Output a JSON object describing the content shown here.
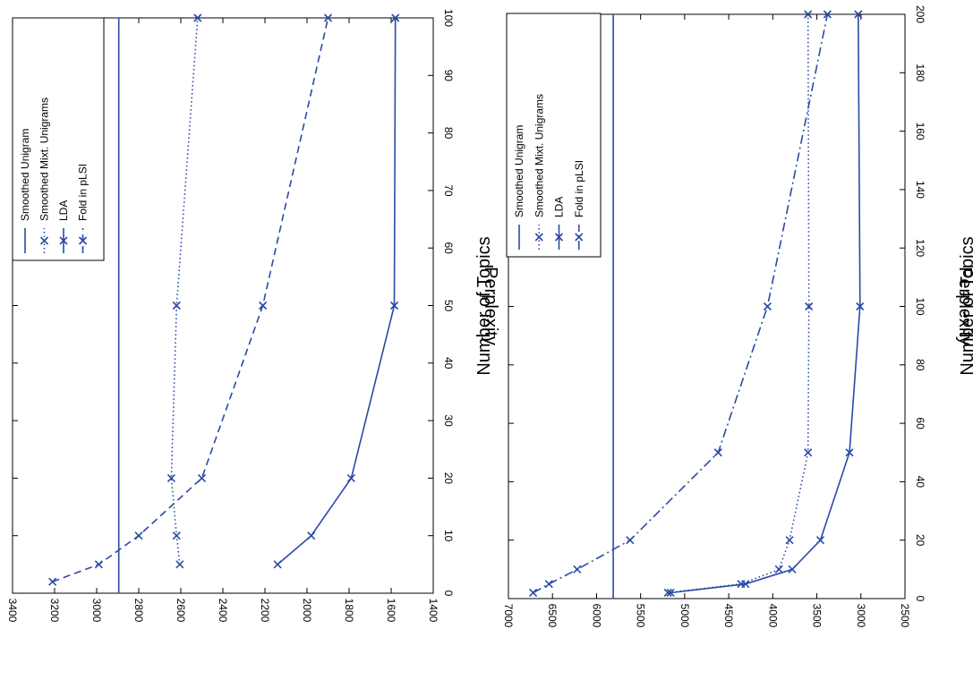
{
  "chart_data": [
    {
      "type": "line",
      "xlabel": "Number of Topics",
      "ylabel": "Perplexity",
      "xlim": [
        0,
        100
      ],
      "ylim": [
        1400,
        3400
      ],
      "xticks": [
        0,
        10,
        20,
        30,
        40,
        50,
        60,
        70,
        80,
        90,
        100
      ],
      "yticks": [
        1400,
        1600,
        1800,
        2000,
        2200,
        2400,
        2600,
        2800,
        3000,
        3200,
        3400
      ],
      "legend_position": "top-right",
      "colors": {
        "series": "#2a4aa6",
        "axis": "#000000"
      },
      "series": [
        {
          "name": "Smoothed Unigram",
          "style": "solid",
          "marker": "none",
          "x": [
            0,
            100
          ],
          "y": [
            2895,
            2895
          ]
        },
        {
          "name": "Smoothed Mixt. Unigrams",
          "style": "dotted",
          "marker": "x",
          "x": [
            5,
            10,
            20,
            50,
            100
          ],
          "y": [
            2605,
            2620,
            2645,
            2620,
            2520
          ]
        },
        {
          "name": "LDA",
          "style": "solid",
          "marker": "x",
          "x": [
            5,
            10,
            20,
            50,
            100
          ],
          "y": [
            2140,
            1980,
            1790,
            1585,
            1580
          ]
        },
        {
          "name": "Fold in pLSI",
          "style": "dashed",
          "marker": "x",
          "x": [
            2,
            5,
            10,
            20,
            50,
            100
          ],
          "y": [
            3210,
            2990,
            2800,
            2500,
            2210,
            1900
          ]
        }
      ]
    },
    {
      "type": "line",
      "xlabel": "Number of Topics",
      "ylabel": "Perplexity",
      "xlim": [
        0,
        200
      ],
      "ylim": [
        2500,
        7000
      ],
      "xticks": [
        0,
        20,
        40,
        60,
        80,
        100,
        120,
        140,
        160,
        180,
        200
      ],
      "yticks": [
        2500,
        3000,
        3500,
        4000,
        4500,
        5000,
        5500,
        6000,
        6500,
        7000
      ],
      "legend_position": "top-right",
      "colors": {
        "series": "#2a4aa6",
        "axis": "#000000"
      },
      "series": [
        {
          "name": "Smoothed Unigram",
          "style": "solid",
          "marker": "none",
          "x": [
            0,
            200
          ],
          "y": [
            5810,
            5810
          ]
        },
        {
          "name": "Smoothed Mixt. Unigrams",
          "style": "dotted",
          "marker": "x",
          "x": [
            2,
            5,
            10,
            20,
            50,
            100,
            200
          ],
          "y": [
            5190,
            4360,
            3930,
            3810,
            3600,
            3590,
            3600
          ]
        },
        {
          "name": "LDA",
          "style": "solid",
          "marker": "x",
          "x": [
            2,
            5,
            10,
            20,
            50,
            100,
            200
          ],
          "y": [
            5160,
            4310,
            3780,
            3460,
            3130,
            3010,
            3030
          ]
        },
        {
          "name": "Fold in pLSI",
          "style": "dashdot",
          "marker": "x",
          "x": [
            2,
            5,
            10,
            20,
            50,
            100,
            200
          ],
          "y": [
            6720,
            6540,
            6220,
            5620,
            4620,
            4060,
            3380
          ]
        }
      ]
    }
  ]
}
